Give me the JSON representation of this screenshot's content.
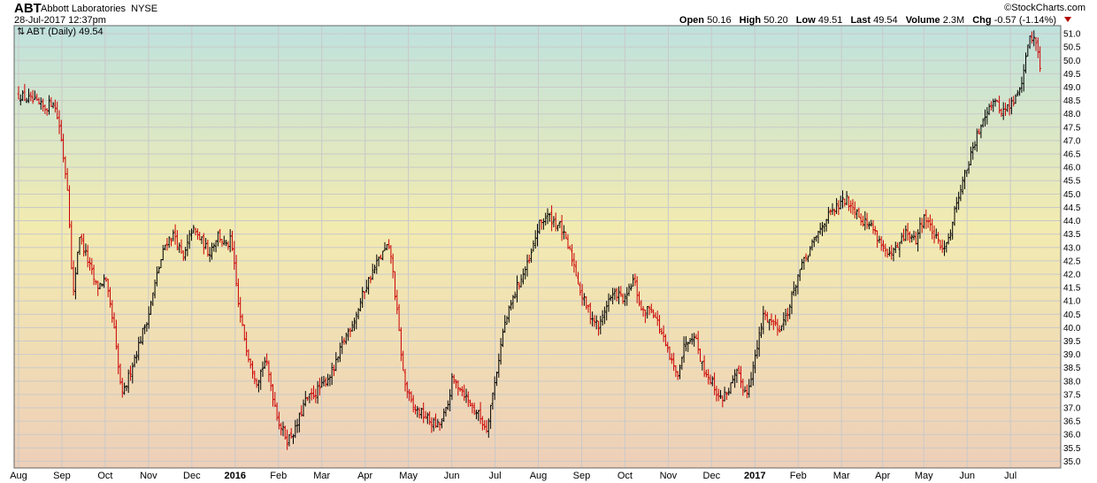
{
  "header": {
    "symbol": "ABT",
    "name": "Abbott Laboratories",
    "exchange": "NYSE",
    "timestamp": "28-Jul-2017 12:37pm",
    "brand": "©StockCharts.com",
    "quote": {
      "open_label": "Open",
      "open": "50.16",
      "high_label": "High",
      "high": "50.20",
      "low_label": "Low",
      "low": "49.51",
      "last_label": "Last",
      "last": "49.54",
      "volume_label": "Volume",
      "volume": "2.3M",
      "chg_label": "Chg",
      "chg": "-0.57 (-1.14%)"
    }
  },
  "colors": {
    "up": "#000000",
    "down": "#cc0000",
    "bg_top": "#bfe2de",
    "bg_mid": "#f2ebb0",
    "bg_bottom": "#eecfb8",
    "grid": "#c9c9c9"
  },
  "chart_data": {
    "type": "line",
    "legend": "ABT (Daily) 49.54",
    "y_ticks": [
      "35.0",
      "35.5",
      "36.0",
      "36.5",
      "37.0",
      "37.5",
      "38.0",
      "38.5",
      "39.0",
      "39.5",
      "40.0",
      "40.5",
      "41.0",
      "41.5",
      "42.0",
      "42.5",
      "43.0",
      "43.5",
      "44.0",
      "44.5",
      "45.0",
      "45.5",
      "46.0",
      "46.5",
      "47.0",
      "47.5",
      "48.0",
      "48.5",
      "49.0",
      "49.5",
      "50.0",
      "50.5",
      "51.0"
    ],
    "ylim": [
      34.75,
      51.3
    ],
    "x_labels": [
      "Aug",
      "Sep",
      "Oct",
      "Nov",
      "Dec",
      "2016",
      "Feb",
      "Mar",
      "Apr",
      "May",
      "Jun",
      "Jul",
      "Aug",
      "Sep",
      "Oct",
      "Nov",
      "Dec",
      "2017",
      "Feb",
      "Mar",
      "Apr",
      "May",
      "Jun",
      "Jul"
    ],
    "x_label_is_year": [
      false,
      false,
      false,
      false,
      false,
      true,
      false,
      false,
      false,
      false,
      false,
      false,
      false,
      false,
      false,
      false,
      false,
      true,
      false,
      false,
      false,
      false,
      false,
      false
    ],
    "x_label_month_index": [
      0,
      1,
      2,
      3,
      4,
      5,
      6,
      7,
      8,
      9,
      10,
      11,
      12,
      13,
      14,
      15,
      16,
      17,
      18,
      19,
      19.95,
      20.9,
      21.9,
      22.9
    ],
    "x_month_span": [
      0,
      24
    ],
    "series": [
      {
        "values": [
          [
            0.0,
            48.7
          ],
          [
            0.3,
            48.5
          ],
          [
            0.6,
            48.2
          ],
          [
            0.8,
            48.5
          ],
          [
            0.95,
            47.5
          ],
          [
            1.05,
            46.2
          ],
          [
            1.15,
            45.0
          ],
          [
            1.25,
            41.0
          ],
          [
            1.4,
            43.5
          ],
          [
            1.6,
            42.5
          ],
          [
            1.8,
            41.5
          ],
          [
            2.0,
            41.8
          ],
          [
            2.2,
            40.0
          ],
          [
            2.3,
            38.5
          ],
          [
            2.4,
            37.4
          ],
          [
            2.6,
            38.5
          ],
          [
            2.8,
            39.5
          ],
          [
            3.0,
            40.5
          ],
          [
            3.2,
            42.0
          ],
          [
            3.4,
            43.2
          ],
          [
            3.6,
            43.5
          ],
          [
            3.8,
            42.5
          ],
          [
            4.0,
            43.7
          ],
          [
            4.2,
            43.3
          ],
          [
            4.4,
            42.8
          ],
          [
            4.6,
            43.5
          ],
          [
            4.8,
            43.0
          ],
          [
            4.9,
            43.3
          ],
          [
            5.0,
            42.0
          ],
          [
            5.1,
            40.5
          ],
          [
            5.3,
            39.0
          ],
          [
            5.5,
            38.0
          ],
          [
            5.7,
            38.8
          ],
          [
            6.0,
            36.5
          ],
          [
            6.2,
            35.8
          ],
          [
            6.4,
            36.2
          ],
          [
            6.6,
            37.2
          ],
          [
            6.8,
            37.5
          ],
          [
            7.0,
            37.8
          ],
          [
            7.3,
            38.5
          ],
          [
            7.5,
            39.5
          ],
          [
            7.8,
            40.5
          ],
          [
            8.0,
            41.5
          ],
          [
            8.3,
            42.5
          ],
          [
            8.5,
            43.0
          ],
          [
            8.6,
            42.7
          ],
          [
            8.9,
            38.0
          ],
          [
            9.1,
            37.0
          ],
          [
            9.3,
            36.8
          ],
          [
            9.5,
            36.5
          ],
          [
            9.7,
            36.3
          ],
          [
            9.9,
            37.0
          ],
          [
            10.0,
            38.0
          ],
          [
            10.2,
            37.8
          ],
          [
            10.4,
            37.2
          ],
          [
            10.6,
            36.8
          ],
          [
            10.8,
            36.2
          ],
          [
            11.0,
            38.0
          ],
          [
            11.2,
            40.0
          ],
          [
            11.5,
            41.5
          ],
          [
            11.8,
            42.5
          ],
          [
            12.0,
            43.8
          ],
          [
            12.2,
            44.2
          ],
          [
            12.5,
            43.8
          ],
          [
            12.8,
            42.5
          ],
          [
            13.0,
            41.2
          ],
          [
            13.2,
            40.5
          ],
          [
            13.4,
            40.0
          ],
          [
            13.6,
            41.0
          ],
          [
            13.8,
            41.3
          ],
          [
            14.0,
            41.0
          ],
          [
            14.2,
            41.8
          ],
          [
            14.4,
            40.5
          ],
          [
            14.6,
            40.8
          ],
          [
            14.8,
            40.0
          ],
          [
            15.0,
            39.0
          ],
          [
            15.2,
            38.2
          ],
          [
            15.4,
            39.5
          ],
          [
            15.6,
            39.8
          ],
          [
            15.8,
            38.5
          ],
          [
            16.0,
            38.0
          ],
          [
            16.2,
            37.3
          ],
          [
            16.4,
            37.7
          ],
          [
            16.6,
            38.3
          ],
          [
            16.8,
            37.5
          ],
          [
            17.0,
            38.8
          ],
          [
            17.2,
            40.5
          ],
          [
            17.4,
            40.2
          ],
          [
            17.6,
            40.0
          ],
          [
            17.8,
            40.8
          ],
          [
            18.0,
            42.0
          ],
          [
            18.3,
            43.0
          ],
          [
            18.6,
            44.0
          ],
          [
            18.9,
            44.5
          ],
          [
            19.1,
            44.8
          ],
          [
            19.3,
            44.5
          ],
          [
            19.5,
            44.0
          ],
          [
            19.7,
            43.8
          ],
          [
            19.9,
            43.2
          ],
          [
            20.1,
            42.6
          ],
          [
            20.3,
            43.0
          ],
          [
            20.5,
            43.6
          ],
          [
            20.7,
            43.2
          ],
          [
            20.9,
            44.2
          ],
          [
            21.1,
            43.6
          ],
          [
            21.3,
            42.9
          ],
          [
            21.5,
            43.5
          ],
          [
            21.7,
            45.0
          ],
          [
            21.9,
            46.0
          ],
          [
            22.1,
            47.0
          ],
          [
            22.3,
            48.0
          ],
          [
            22.5,
            48.5
          ],
          [
            22.7,
            48.1
          ],
          [
            22.9,
            48.3
          ],
          [
            23.1,
            48.8
          ],
          [
            23.25,
            50.0
          ],
          [
            23.35,
            51.0
          ],
          [
            23.5,
            50.6
          ],
          [
            23.6,
            49.7
          ]
        ]
      }
    ]
  }
}
